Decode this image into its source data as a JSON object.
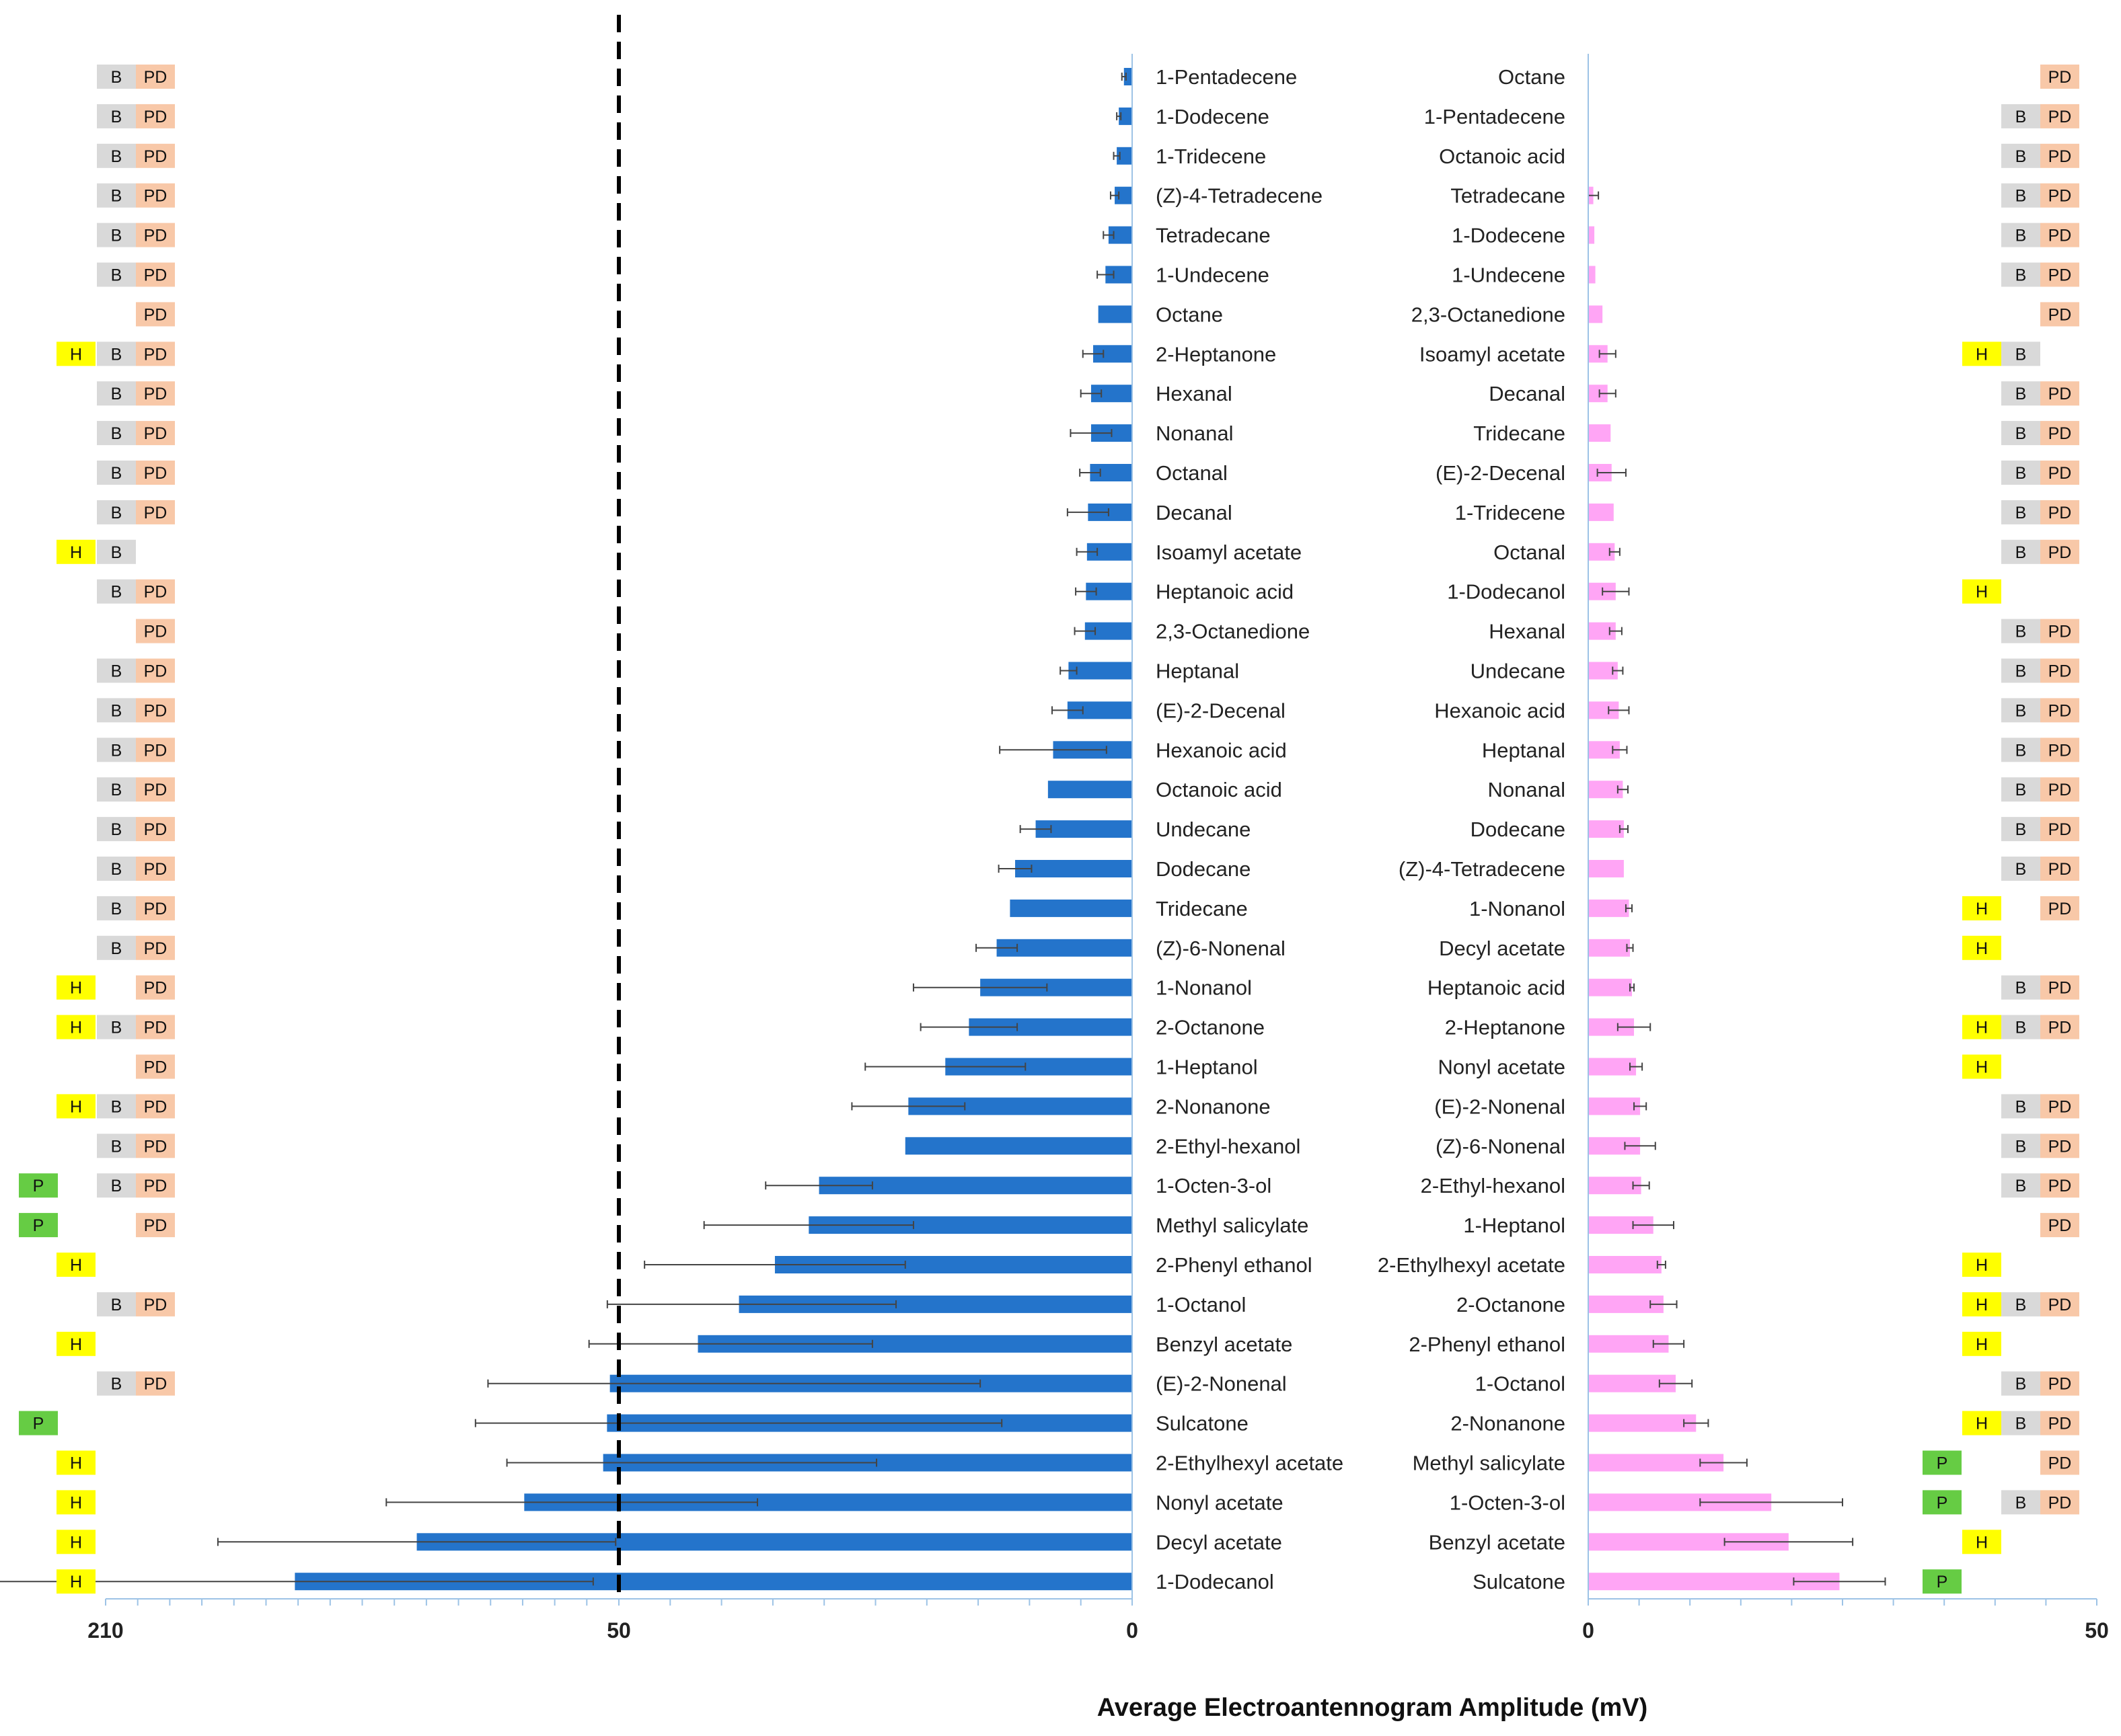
{
  "chart_data": [
    {
      "type": "bar",
      "orientation": "horizontal",
      "title": "",
      "xlabel": "Average Electroantennogram Amplitude (mV)",
      "ylabel": "",
      "tick_labels": [
        "210",
        "50",
        "0"
      ],
      "axis_breakpoints": [
        0,
        50,
        210
      ],
      "threshold_line_at": 50,
      "color": "#2474CB",
      "categories": [
        "1-Pentadecene",
        "1-Dodecene",
        "1-Tridecene",
        "(Z)-4-Tetradecene",
        "Tetradecane",
        "1-Undecene",
        "Octane",
        "2-Heptanone",
        "Hexanal",
        "Nonanal",
        "Octanal",
        "Decanal",
        "Isoamyl acetate",
        "Heptanoic acid",
        "2,3-Octanedione",
        "Heptanal",
        "(E)-2-Decenal",
        "Hexanoic acid",
        "Octanoic acid",
        "Undecane",
        "Dodecane",
        "Tridecane",
        "(Z)-6-Nonenal",
        "1-Nonanol",
        "2-Octanone",
        "1-Heptanol",
        "2-Nonanone",
        "2-Ethyl-hexanol",
        "1-Octen-3-ol",
        "Methyl salicylate",
        "2-Phenyl ethanol",
        "1-Octanol",
        "Benzyl acetate",
        "(E)-2-Nonenal",
        "Sulcatone",
        "2-Ethylhexyl acetate",
        "Nonyl acetate",
        "Decyl acetate",
        "1-Dodecanol"
      ],
      "values": [
        0.8,
        1.3,
        1.5,
        1.7,
        2.3,
        2.6,
        3.3,
        3.8,
        4.0,
        4.0,
        4.1,
        4.3,
        4.4,
        4.5,
        4.6,
        6.2,
        6.3,
        7.7,
        8.2,
        9.4,
        11.4,
        11.9,
        13.2,
        14.8,
        15.9,
        18.2,
        21.8,
        22.1,
        30.5,
        31.5,
        34.8,
        38.3,
        42.3,
        52.8,
        53.7,
        54.9,
        79.5,
        113.0,
        151.0
      ],
      "errors": [
        0.2,
        0.2,
        0.3,
        0.4,
        0.5,
        0.8,
        0,
        1.0,
        1.0,
        2.0,
        1.0,
        2.0,
        1.0,
        1.0,
        1.0,
        0.8,
        1.5,
        5.2,
        0,
        1.5,
        1.6,
        0,
        2.0,
        6.5,
        4.7,
        7.8,
        5.5,
        0,
        5.2,
        10.2,
        12.7,
        15.3,
        17.0,
        38.0,
        41.0,
        30.0,
        43.0,
        62.0,
        93.0
      ],
      "annotations": [
        [
          "B",
          "PD"
        ],
        [
          "B",
          "PD"
        ],
        [
          "B",
          "PD"
        ],
        [
          "B",
          "PD"
        ],
        [
          "B",
          "PD"
        ],
        [
          "B",
          "PD"
        ],
        [
          "PD"
        ],
        [
          "H",
          "B",
          "PD"
        ],
        [
          "B",
          "PD"
        ],
        [
          "B",
          "PD"
        ],
        [
          "B",
          "PD"
        ],
        [
          "B",
          "PD"
        ],
        [
          "H",
          "B"
        ],
        [
          "B",
          "PD"
        ],
        [
          "PD"
        ],
        [
          "B",
          "PD"
        ],
        [
          "B",
          "PD"
        ],
        [
          "B",
          "PD"
        ],
        [
          "B",
          "PD"
        ],
        [
          "B",
          "PD"
        ],
        [
          "B",
          "PD"
        ],
        [
          "B",
          "PD"
        ],
        [
          "B",
          "PD"
        ],
        [
          "H",
          "PD"
        ],
        [
          "H",
          "B",
          "PD"
        ],
        [
          "PD"
        ],
        [
          "H",
          "B",
          "PD"
        ],
        [
          "B",
          "PD"
        ],
        [
          "P",
          "B",
          "PD"
        ],
        [
          "P",
          "PD"
        ],
        [
          "H"
        ],
        [
          "B",
          "PD"
        ],
        [
          "H"
        ],
        [
          "B",
          "PD"
        ],
        [
          "P"
        ],
        [
          "H"
        ],
        [
          "H"
        ],
        [
          "H"
        ],
        [
          "H"
        ]
      ]
    },
    {
      "type": "bar",
      "orientation": "horizontal",
      "title": "",
      "xlabel": "Average Electroantennogram Amplitude (mV)",
      "ylabel": "",
      "tick_labels": [
        "0",
        "50"
      ],
      "xlim": [
        0,
        50
      ],
      "color": "#FFA5F5",
      "categories": [
        "Octane",
        "1-Pentadecene",
        "Octanoic acid",
        "Tetradecane",
        "1-Dodecene",
        "1-Undecene",
        "2,3-Octanedione",
        "Isoamyl acetate",
        "Decanal",
        "Tridecane",
        "(E)-2-Decenal",
        "1-Tridecene",
        "Octanal",
        "1-Dodecanol",
        "Hexanal",
        "Undecane",
        "Hexanoic acid",
        "Heptanal",
        "Nonanal",
        "Dodecane",
        "(Z)-4-Tetradecene",
        "1-Nonanol",
        "Decyl acetate",
        "Heptanoic acid",
        "2-Heptanone",
        "Nonyl acetate",
        "(E)-2-Nonenal",
        "(Z)-6-Nonenal",
        "2-Ethyl-hexanol",
        "1-Heptanol",
        "2-Ethylhexyl acetate",
        "2-Octanone",
        "2-Phenyl ethanol",
        "1-Octanol",
        "2-Nonanone",
        "Methyl salicylate",
        "1-Octen-3-ol",
        "Benzyl acetate",
        "Sulcatone"
      ],
      "values": [
        0,
        0,
        0,
        0.5,
        0.6,
        0.7,
        1.4,
        1.9,
        1.9,
        2.2,
        2.3,
        2.5,
        2.6,
        2.7,
        2.7,
        2.9,
        3.0,
        3.1,
        3.4,
        3.5,
        3.5,
        4.0,
        4.1,
        4.3,
        4.5,
        4.7,
        5.1,
        5.1,
        5.2,
        6.4,
        7.2,
        7.4,
        7.9,
        8.6,
        10.6,
        13.3,
        18.0,
        19.7,
        24.7
      ],
      "errors": [
        0,
        0,
        0,
        0.5,
        0,
        0,
        0,
        0.8,
        0.8,
        0,
        1.4,
        0,
        0.5,
        1.3,
        0.6,
        0.5,
        1.0,
        0.7,
        0.5,
        0.4,
        0,
        0.3,
        0.3,
        0.2,
        1.6,
        0.6,
        0.6,
        1.5,
        0.8,
        2.0,
        0.4,
        1.3,
        1.5,
        1.6,
        1.2,
        2.3,
        7.0,
        6.3,
        4.5
      ],
      "annotations": [
        [
          "PD"
        ],
        [
          "B",
          "PD"
        ],
        [
          "B",
          "PD"
        ],
        [
          "B",
          "PD"
        ],
        [
          "B",
          "PD"
        ],
        [
          "B",
          "PD"
        ],
        [
          "PD"
        ],
        [
          "H",
          "B"
        ],
        [
          "B",
          "PD"
        ],
        [
          "B",
          "PD"
        ],
        [
          "B",
          "PD"
        ],
        [
          "B",
          "PD"
        ],
        [
          "B",
          "PD"
        ],
        [
          "H"
        ],
        [
          "B",
          "PD"
        ],
        [
          "B",
          "PD"
        ],
        [
          "B",
          "PD"
        ],
        [
          "B",
          "PD"
        ],
        [
          "B",
          "PD"
        ],
        [
          "B",
          "PD"
        ],
        [
          "B",
          "PD"
        ],
        [
          "H",
          "PD"
        ],
        [
          "H"
        ],
        [
          "B",
          "PD"
        ],
        [
          "H",
          "B",
          "PD"
        ],
        [
          "H"
        ],
        [
          "B",
          "PD"
        ],
        [
          "B",
          "PD"
        ],
        [
          "B",
          "PD"
        ],
        [
          "PD"
        ],
        [
          "H"
        ],
        [
          "H",
          "B",
          "PD"
        ],
        [
          "H"
        ],
        [
          "B",
          "PD"
        ],
        [
          "H",
          "B",
          "PD"
        ],
        [
          "P",
          "PD"
        ],
        [
          "P",
          "B",
          "PD"
        ],
        [
          "H"
        ],
        [
          "P"
        ]
      ]
    }
  ],
  "colors": {
    "left_bars": "#2474CB",
    "right_bars": "#FFA5F5",
    "tag_P": "#66CC44",
    "tag_H": "#FFFF00",
    "tag_B": "#D9D9D9",
    "tag_PD": "#F8C8A8",
    "axis": "#9DC3E6"
  }
}
